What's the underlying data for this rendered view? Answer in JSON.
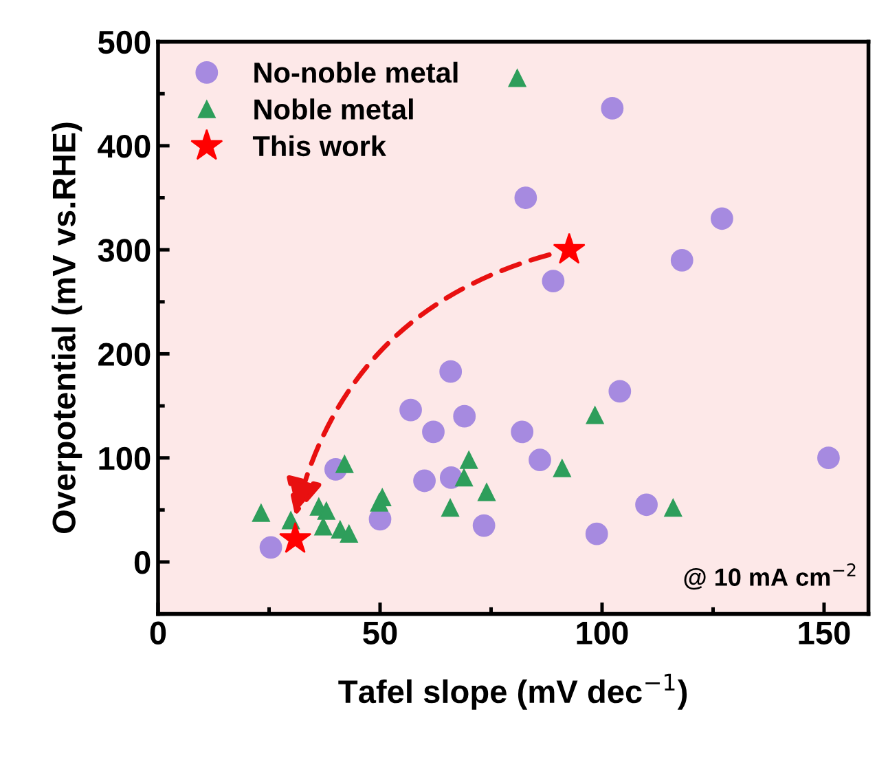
{
  "chart_data": {
    "type": "scatter",
    "xlabel": "Tafel slope (mV dec$^{−1}$)",
    "ylabel": "Overpotential (mV vs.RHE)",
    "xlim": [
      0,
      160
    ],
    "ylim": [
      -50,
      500
    ],
    "xticks": [
      0,
      50,
      100,
      150
    ],
    "yticks": [
      0,
      100,
      200,
      300,
      400,
      500
    ],
    "grid": false,
    "legend": "top left",
    "annotations": [
      "@ 10 mA cm$^{−2}$"
    ],
    "series": [
      {
        "name": "No-noble metal",
        "color": "#a68ae0",
        "marker": "circle",
        "x": [
          102.3,
          82.8,
          127,
          118,
          89,
          65.9,
          104,
          56.9,
          69,
          62,
          82,
          86,
          151,
          40,
          60,
          66,
          50,
          73.4,
          110,
          98.8,
          25.4
        ],
        "values": [
          436,
          350,
          330,
          290,
          270,
          183,
          164,
          146,
          140,
          125,
          125,
          98,
          100,
          89,
          78,
          81,
          41,
          35,
          55,
          27,
          14
        ]
      },
      {
        "name": "Noble metal",
        "color": "#2e9e5b",
        "marker": "triangle",
        "x": [
          80.9,
          98.4,
          42,
          70,
          91,
          68.9,
          74,
          50.5,
          49.8,
          65.8,
          116,
          23.2,
          36.2,
          37.9,
          29.9,
          37.2,
          41,
          43
        ],
        "values": [
          465,
          141,
          94,
          98,
          90,
          81,
          67,
          62,
          57,
          52,
          52,
          47,
          53,
          49,
          40,
          34,
          31,
          27
        ]
      },
      {
        "name": "This work",
        "color": "#ff0000",
        "marker": "star",
        "x": [
          30.9,
          92.6
        ],
        "values": [
          22,
          300
        ]
      }
    ]
  }
}
